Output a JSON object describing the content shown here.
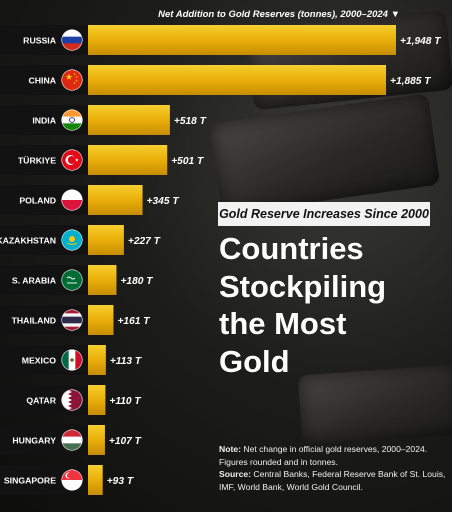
{
  "chart_data": {
    "type": "bar",
    "orientation": "horizontal",
    "title": "Net Addition to Gold Reserves (tonnes), 2000–2024 ▼",
    "categories": [
      "RUSSIA",
      "CHINA",
      "INDIA",
      "TÜRKIYE",
      "POLAND",
      "KAZAKHSTAN",
      "S. ARABIA",
      "THAILAND",
      "MEXICO",
      "QATAR",
      "HUNGARY",
      "SINGAPORE"
    ],
    "values": [
      1948,
      1885,
      518,
      501,
      345,
      227,
      180,
      161,
      113,
      110,
      107,
      93
    ],
    "value_labels": [
      "+1,948 T",
      "+1,885 T",
      "+518 T",
      "+501 T",
      "+345 T",
      "+227 T",
      "+180 T",
      "+161 T",
      "+113 T",
      "+110 T",
      "+107 T",
      "+93 T"
    ],
    "flags": [
      "russia-flag",
      "china-flag",
      "india-flag",
      "turkiye-flag",
      "poland-flag",
      "kazakhstan-flag",
      "saudi-arabia-flag",
      "thailand-flag",
      "mexico-flag",
      "qatar-flag",
      "hungary-flag",
      "singapore-flag"
    ],
    "xlim": [
      0,
      1948
    ],
    "grid": false,
    "bar_color": "#f0b80e"
  },
  "panel": {
    "subtitle": "Gold Reserve Increases Since 2000",
    "headline": [
      "Countries",
      "Stockpiling",
      "the Most",
      "Gold"
    ]
  },
  "note": {
    "note_label": "Note:",
    "note_text": "Net change in official gold reserves, 2000–2024. Figures rounded and in tonnes.",
    "source_label": "Source:",
    "source_text": "Central Banks, Federal Reserve Bank of St. Louis, IMF, World Bank, World Gold Council."
  }
}
